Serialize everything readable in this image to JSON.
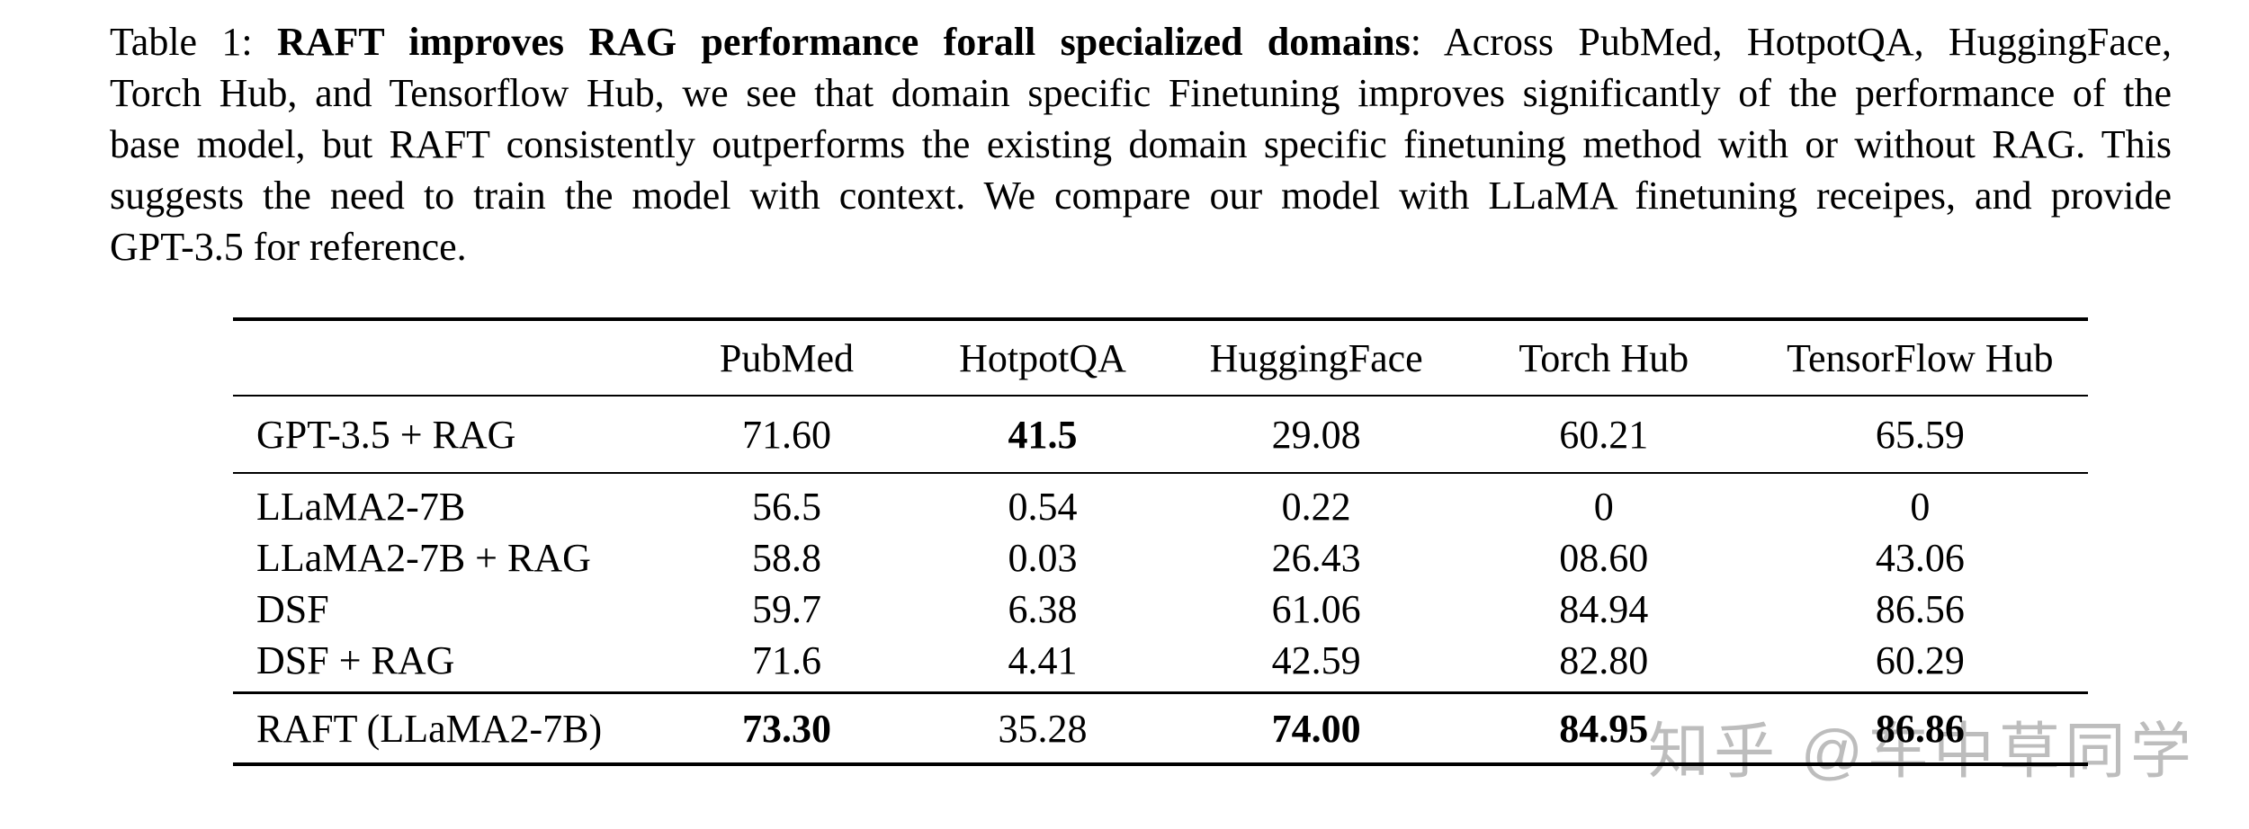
{
  "page": {
    "background_color": "#ffffff",
    "text_color": "#000000"
  },
  "caption": {
    "line1_prefix": "Table 1: ",
    "line1_bold": "RAFT improves RAG performance forall specialized domains",
    "line1_suffix": ": Across PubMed, HotpotQA, HuggingFace,",
    "line2": "Torch Hub, and Tensorflow Hub, we see that domain specific Finetuning improves significantly of the performance of the",
    "line3": "base model, but RAFT consistently outperforms the existing domain specific finetuning method with or without RAG. This",
    "line4": "suggests the need to train the model with context. We compare our model with LLaMA finetuning receipes, and provide",
    "line5": "GPT-3.5 for reference."
  },
  "table": {
    "columns": [
      "PubMed",
      "HotpotQA",
      "HuggingFace",
      "Torch Hub",
      "TensorFlow Hub"
    ],
    "rows": [
      {
        "label": "GPT-3.5 + RAG",
        "values": [
          "71.60",
          "41.5",
          "29.08",
          "60.21",
          "65.59"
        ],
        "bold": [
          false,
          true,
          false,
          false,
          false
        ]
      },
      {
        "label": "LLaMA2-7B",
        "values": [
          "56.5",
          "0.54",
          "0.22",
          "0",
          "0"
        ],
        "bold": [
          false,
          false,
          false,
          false,
          false
        ]
      },
      {
        "label": "LLaMA2-7B + RAG",
        "values": [
          "58.8",
          "0.03",
          "26.43",
          "08.60",
          "43.06"
        ],
        "bold": [
          false,
          false,
          false,
          false,
          false
        ]
      },
      {
        "label": "DSF",
        "values": [
          "59.7",
          "6.38",
          "61.06",
          "84.94",
          "86.56"
        ],
        "bold": [
          false,
          false,
          false,
          false,
          false
        ]
      },
      {
        "label": "DSF + RAG",
        "values": [
          "71.6",
          "4.41",
          "42.59",
          "82.80",
          "60.29"
        ],
        "bold": [
          false,
          false,
          false,
          false,
          false
        ]
      },
      {
        "label": "RAFT (LLaMA2-7B)",
        "values": [
          "73.30",
          "35.28",
          "74.00",
          "84.95",
          "86.86"
        ],
        "bold": [
          true,
          false,
          true,
          true,
          true
        ]
      }
    ]
  },
  "watermark": {
    "text": "知乎 @车中草同学",
    "color": "#bdbdbd"
  }
}
